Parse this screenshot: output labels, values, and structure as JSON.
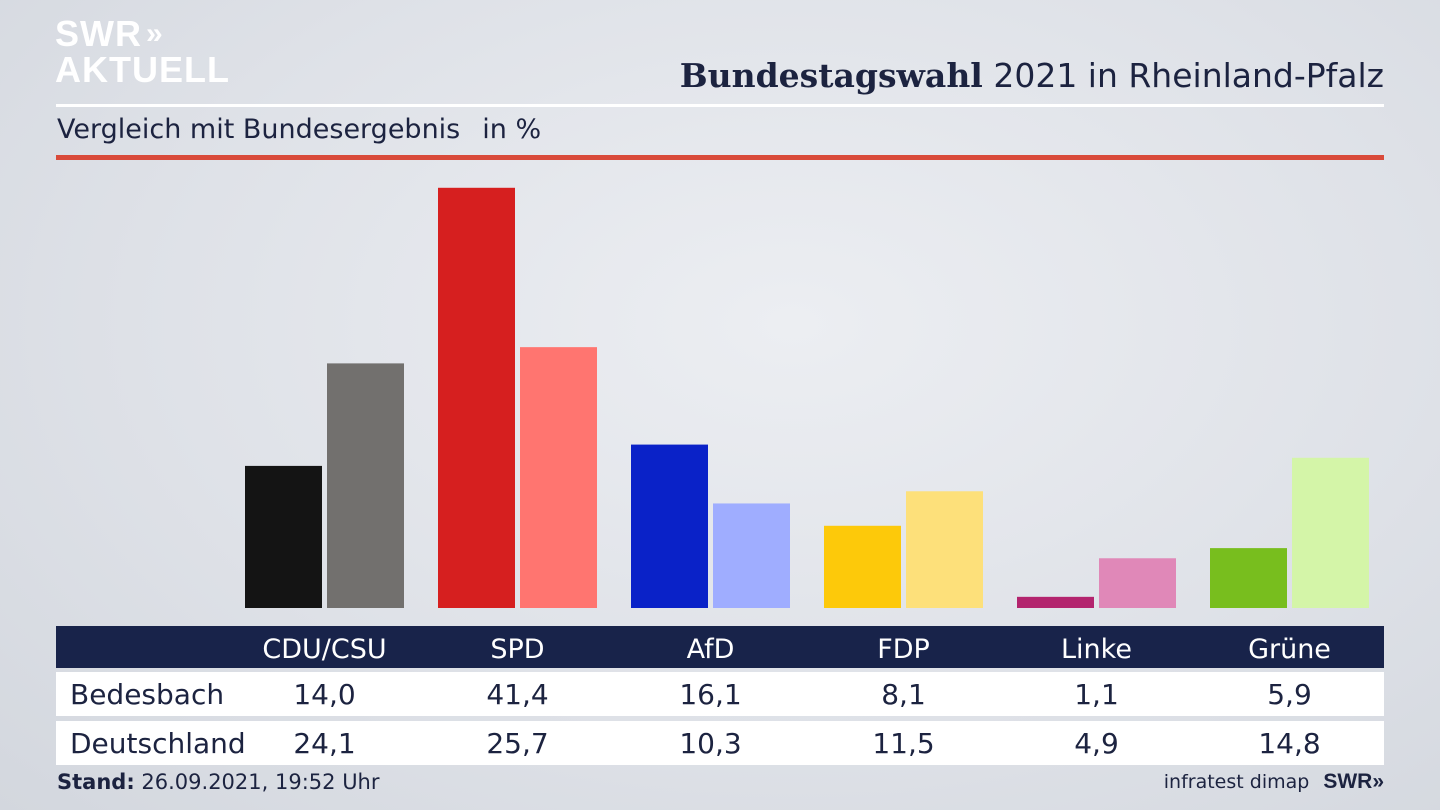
{
  "brand": {
    "line1": "SWR",
    "chevrons": "»",
    "line2": "AKTUELL"
  },
  "header": {
    "title_bold": "Bundestagswahl",
    "title_rest": " 2021 in Rheinland-Pfalz",
    "subtitle": "Vergleich mit Bundesergebnis",
    "unit": "in %"
  },
  "chart_data": {
    "type": "bar",
    "categories": [
      "CDU/CSU",
      "SPD",
      "AfD",
      "FDP",
      "Linke",
      "Grüne"
    ],
    "series": [
      {
        "name": "Bedesbach",
        "values": [
          14.0,
          41.4,
          16.1,
          8.1,
          1.1,
          5.9
        ]
      },
      {
        "name": "Deutschland",
        "values": [
          24.1,
          25.7,
          10.3,
          11.5,
          4.9,
          14.8
        ]
      }
    ],
    "display_values": {
      "Bedesbach": [
        "14,0",
        "41,4",
        "16,1",
        "8,1",
        "1,1",
        "5,9"
      ],
      "Deutschland": [
        "24,1",
        "25,7",
        "10,3",
        "11,5",
        "4,9",
        "14,8"
      ]
    },
    "colors": {
      "Bedesbach": [
        "#141414",
        "#d61f1f",
        "#0a22c8",
        "#fdc90a",
        "#b3246e",
        "#78be1e"
      ],
      "Deutschland": [
        "#72706e",
        "#ff7570",
        "#9fadff",
        "#fde07a",
        "#e088b8",
        "#d4f5a8"
      ]
    },
    "ylim": [
      0,
      42
    ],
    "grid": false,
    "legend": "table-below"
  },
  "footer": {
    "stand_label": "Stand:",
    "stand_value": "26.09.2021, 19:52 Uhr",
    "source": "infratest dimap",
    "brand": "SWR",
    "brand_chevrons": "»"
  }
}
